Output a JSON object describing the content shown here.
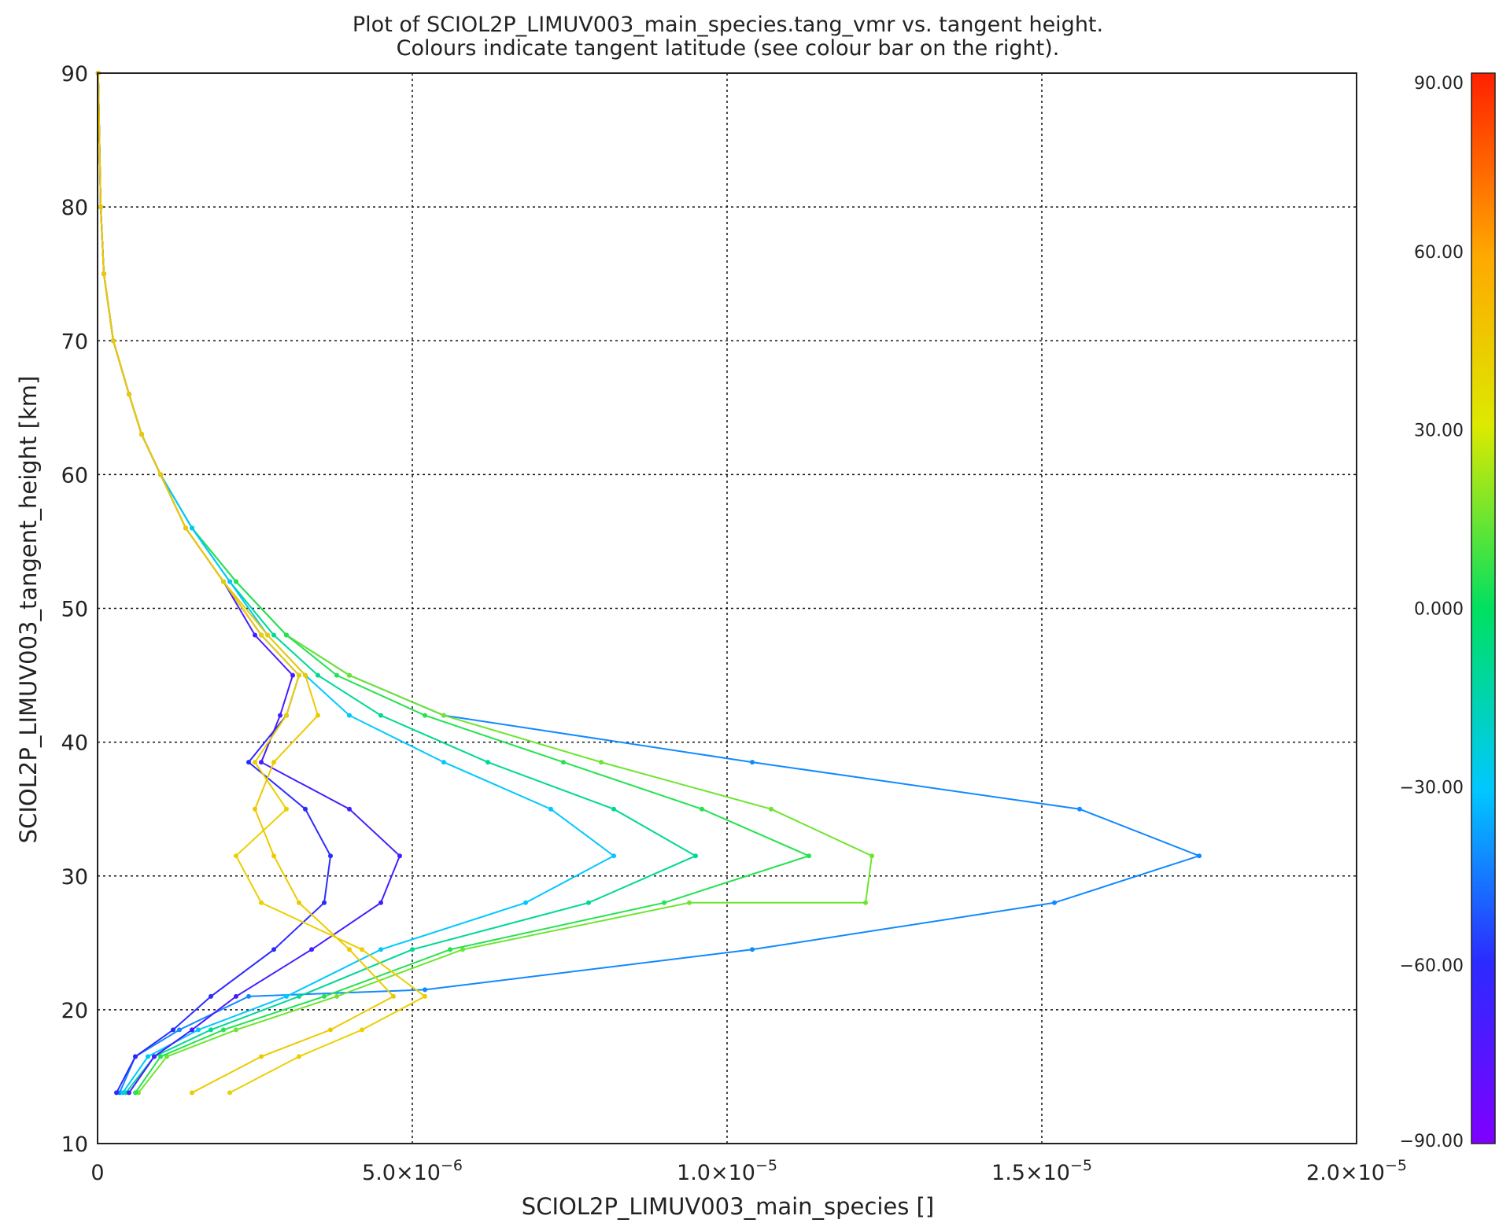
{
  "chart_data": {
    "type": "line",
    "title": "Plot of SCIOL2P_LIMUV003_main_species.tang_vmr vs. tangent height.",
    "subtitle": "Colours indicate tangent latitude (see colour bar on the right).",
    "xlabel": "SCIOL2P_LIMUV003_main_species []",
    "ylabel": "SCIOL2P_LIMUV003_tangent_height [km]",
    "xlim": [
      0,
      2e-05
    ],
    "ylim": [
      10,
      90
    ],
    "x_ticks": [
      0,
      5e-06,
      1e-05,
      1.5e-05,
      2e-05
    ],
    "x_tick_labels": [
      {
        "mant": "0",
        "exp": ""
      },
      {
        "mant": "5.0×10",
        "exp": "−6"
      },
      {
        "mant": "1.0×10",
        "exp": "−5"
      },
      {
        "mant": "1.5×10",
        "exp": "−5"
      },
      {
        "mant": "2.0×10",
        "exp": "−5"
      }
    ],
    "y_ticks": [
      10,
      20,
      30,
      40,
      50,
      60,
      70,
      80,
      90
    ],
    "y_tick_labels": [
      "10",
      "20",
      "30",
      "40",
      "50",
      "60",
      "70",
      "80",
      "90"
    ],
    "grid": true,
    "colorbar": {
      "label_values": [
        90,
        60,
        30,
        0,
        -30,
        -60,
        -90
      ],
      "labels": [
        "90.00",
        "60.00",
        "30.00",
        "0.000",
        "−30.00",
        "−60.00",
        "−90.00"
      ],
      "range": [
        -90,
        90
      ],
      "colors": [
        "#7f00ff",
        "#2b2bff",
        "#00c8ff",
        "#00e060",
        "#dcea00",
        "#ffa800",
        "#ff2000"
      ]
    },
    "series": [
      {
        "latitude": -42,
        "points": [
          [
            3.5e-07,
            13.8
          ],
          [
            6e-07,
            16.5
          ],
          [
            1.3e-06,
            18.5
          ],
          [
            2.4e-06,
            21
          ],
          [
            5.2e-06,
            21.5
          ],
          [
            1.04e-05,
            24.5
          ],
          [
            1.52e-05,
            28
          ],
          [
            1.75e-05,
            31.5
          ],
          [
            1.56e-05,
            35
          ],
          [
            1.04e-05,
            38.5
          ],
          [
            5.5e-06,
            42
          ],
          [
            4e-06,
            45
          ],
          [
            3e-06,
            48
          ],
          [
            2.2e-06,
            52
          ],
          [
            1.5e-06,
            56
          ],
          [
            1e-06,
            60
          ],
          [
            7e-07,
            63
          ],
          [
            5e-07,
            66
          ],
          [
            2.5e-07,
            70
          ],
          [
            1e-07,
            75
          ],
          [
            5e-08,
            80
          ],
          [
            1e-08,
            90
          ]
        ]
      },
      {
        "latitude": 15,
        "points": [
          [
            6.5e-07,
            13.8
          ],
          [
            1.1e-06,
            16.5
          ],
          [
            2.2e-06,
            18.5
          ],
          [
            3.8e-06,
            21
          ],
          [
            5.8e-06,
            24.5
          ],
          [
            9.4e-06,
            28
          ],
          [
            1.22e-05,
            28
          ],
          [
            1.23e-05,
            31.5
          ],
          [
            1.07e-05,
            35
          ],
          [
            8e-06,
            38.5
          ],
          [
            5.5e-06,
            42
          ],
          [
            4e-06,
            45
          ],
          [
            3e-06,
            48
          ],
          [
            2.2e-06,
            52
          ],
          [
            1.5e-06,
            56
          ],
          [
            1e-06,
            60
          ],
          [
            7e-07,
            63
          ],
          [
            5e-07,
            66
          ],
          [
            2.5e-07,
            70
          ],
          [
            1e-07,
            75
          ],
          [
            5e-08,
            80
          ],
          [
            1e-08,
            90
          ]
        ]
      },
      {
        "latitude": 5,
        "points": [
          [
            6e-07,
            13.8
          ],
          [
            1e-06,
            16.5
          ],
          [
            2e-06,
            18.5
          ],
          [
            3.6e-06,
            21
          ],
          [
            5.6e-06,
            24.5
          ],
          [
            9e-06,
            28
          ],
          [
            1.13e-05,
            31.5
          ],
          [
            9.6e-06,
            35
          ],
          [
            7.4e-06,
            38.5
          ],
          [
            5.2e-06,
            42
          ],
          [
            3.8e-06,
            45
          ],
          [
            3e-06,
            48
          ],
          [
            2.2e-06,
            52
          ],
          [
            1.5e-06,
            56
          ],
          [
            1e-06,
            60
          ],
          [
            7e-07,
            63
          ],
          [
            5e-07,
            66
          ],
          [
            2.5e-07,
            70
          ],
          [
            1e-07,
            75
          ],
          [
            5e-08,
            80
          ],
          [
            1e-08,
            90
          ]
        ]
      },
      {
        "latitude": -10,
        "points": [
          [
            4.5e-07,
            13.8
          ],
          [
            9e-07,
            16.5
          ],
          [
            1.8e-06,
            18.5
          ],
          [
            3.2e-06,
            21
          ],
          [
            5e-06,
            24.5
          ],
          [
            7.8e-06,
            28
          ],
          [
            9.5e-06,
            31.5
          ],
          [
            8.2e-06,
            35
          ],
          [
            6.2e-06,
            38.5
          ],
          [
            4.5e-06,
            42
          ],
          [
            3.5e-06,
            45
          ],
          [
            2.8e-06,
            48
          ],
          [
            2.1e-06,
            52
          ],
          [
            1.5e-06,
            56
          ],
          [
            1e-06,
            60
          ],
          [
            7e-07,
            63
          ],
          [
            5e-07,
            66
          ],
          [
            2.5e-07,
            70
          ],
          [
            1e-07,
            75
          ],
          [
            5e-08,
            80
          ],
          [
            1e-08,
            90
          ]
        ]
      },
      {
        "latitude": -30,
        "points": [
          [
            4e-07,
            13.8
          ],
          [
            8e-07,
            16.5
          ],
          [
            1.6e-06,
            18.5
          ],
          [
            3e-06,
            21
          ],
          [
            4.5e-06,
            24.5
          ],
          [
            6.8e-06,
            28
          ],
          [
            8.2e-06,
            31.5
          ],
          [
            7.2e-06,
            35
          ],
          [
            5.5e-06,
            38.5
          ],
          [
            4e-06,
            42
          ],
          [
            3.3e-06,
            45
          ],
          [
            2.7e-06,
            48
          ],
          [
            2.1e-06,
            52
          ],
          [
            1.5e-06,
            56
          ],
          [
            1e-06,
            60
          ],
          [
            7e-07,
            63
          ],
          [
            5e-07,
            66
          ],
          [
            2.5e-07,
            70
          ],
          [
            1e-07,
            75
          ],
          [
            5e-08,
            80
          ],
          [
            1e-08,
            90
          ]
        ]
      },
      {
        "latitude": -60,
        "points": [
          [
            3e-07,
            13.8
          ],
          [
            6e-07,
            16.5
          ],
          [
            1.2e-06,
            18.5
          ],
          [
            1.8e-06,
            21
          ],
          [
            2.8e-06,
            24.5
          ],
          [
            3.6e-06,
            28
          ],
          [
            3.7e-06,
            31.5
          ],
          [
            3.3e-06,
            35
          ],
          [
            2.4e-06,
            38.5
          ],
          [
            3e-06,
            42
          ],
          [
            3.2e-06,
            45
          ],
          [
            2.6e-06,
            48
          ],
          [
            2e-06,
            52
          ],
          [
            1.4e-06,
            56
          ],
          [
            1e-06,
            60
          ],
          [
            7e-07,
            63
          ],
          [
            5e-07,
            66
          ],
          [
            2.5e-07,
            70
          ],
          [
            1e-07,
            75
          ],
          [
            5e-08,
            80
          ],
          [
            1e-08,
            90
          ]
        ]
      },
      {
        "latitude": -70,
        "points": [
          [
            5e-07,
            13.8
          ],
          [
            9e-07,
            16.5
          ],
          [
            1.5e-06,
            18.5
          ],
          [
            2.2e-06,
            21
          ],
          [
            3.4e-06,
            24.5
          ],
          [
            4.5e-06,
            28
          ],
          [
            4.8e-06,
            31.5
          ],
          [
            4e-06,
            35
          ],
          [
            2.6e-06,
            38.5
          ],
          [
            2.9e-06,
            42
          ],
          [
            3.1e-06,
            45
          ],
          [
            2.5e-06,
            48
          ],
          [
            2e-06,
            52
          ],
          [
            1.4e-06,
            56
          ],
          [
            1e-06,
            60
          ],
          [
            7e-07,
            63
          ],
          [
            5e-07,
            66
          ],
          [
            2.5e-07,
            70
          ],
          [
            1e-07,
            75
          ],
          [
            5e-08,
            80
          ],
          [
            1e-08,
            90
          ]
        ]
      },
      {
        "latitude": 42,
        "points": [
          [
            2.1e-06,
            13.8
          ],
          [
            3.2e-06,
            16.5
          ],
          [
            4.2e-06,
            18.5
          ],
          [
            5.2e-06,
            21
          ],
          [
            4.2e-06,
            24.5
          ],
          [
            2.6e-06,
            28
          ],
          [
            2.2e-06,
            31.5
          ],
          [
            3e-06,
            35
          ],
          [
            2.5e-06,
            38.5
          ],
          [
            3e-06,
            42
          ],
          [
            3.2e-06,
            45
          ],
          [
            2.6e-06,
            48
          ],
          [
            2e-06,
            52
          ],
          [
            1.4e-06,
            56
          ],
          [
            1e-06,
            60
          ],
          [
            7e-07,
            63
          ],
          [
            5e-07,
            66
          ],
          [
            2.5e-07,
            70
          ],
          [
            1e-07,
            75
          ],
          [
            5e-08,
            80
          ],
          [
            1e-08,
            90
          ]
        ]
      },
      {
        "latitude": 45,
        "points": [
          [
            1.5e-06,
            13.8
          ],
          [
            2.6e-06,
            16.5
          ],
          [
            3.7e-06,
            18.5
          ],
          [
            4.7e-06,
            21
          ],
          [
            4e-06,
            24.5
          ],
          [
            3.2e-06,
            28
          ],
          [
            2.8e-06,
            31.5
          ],
          [
            2.5e-06,
            35
          ],
          [
            2.8e-06,
            38.5
          ],
          [
            3.5e-06,
            42
          ],
          [
            3.3e-06,
            45
          ],
          [
            2.7e-06,
            48
          ],
          [
            2e-06,
            52
          ],
          [
            1.4e-06,
            56
          ],
          [
            1e-06,
            60
          ],
          [
            7e-07,
            63
          ],
          [
            5e-07,
            66
          ],
          [
            2.5e-07,
            70
          ],
          [
            1e-07,
            75
          ],
          [
            5e-08,
            80
          ],
          [
            1e-08,
            90
          ]
        ]
      }
    ]
  }
}
